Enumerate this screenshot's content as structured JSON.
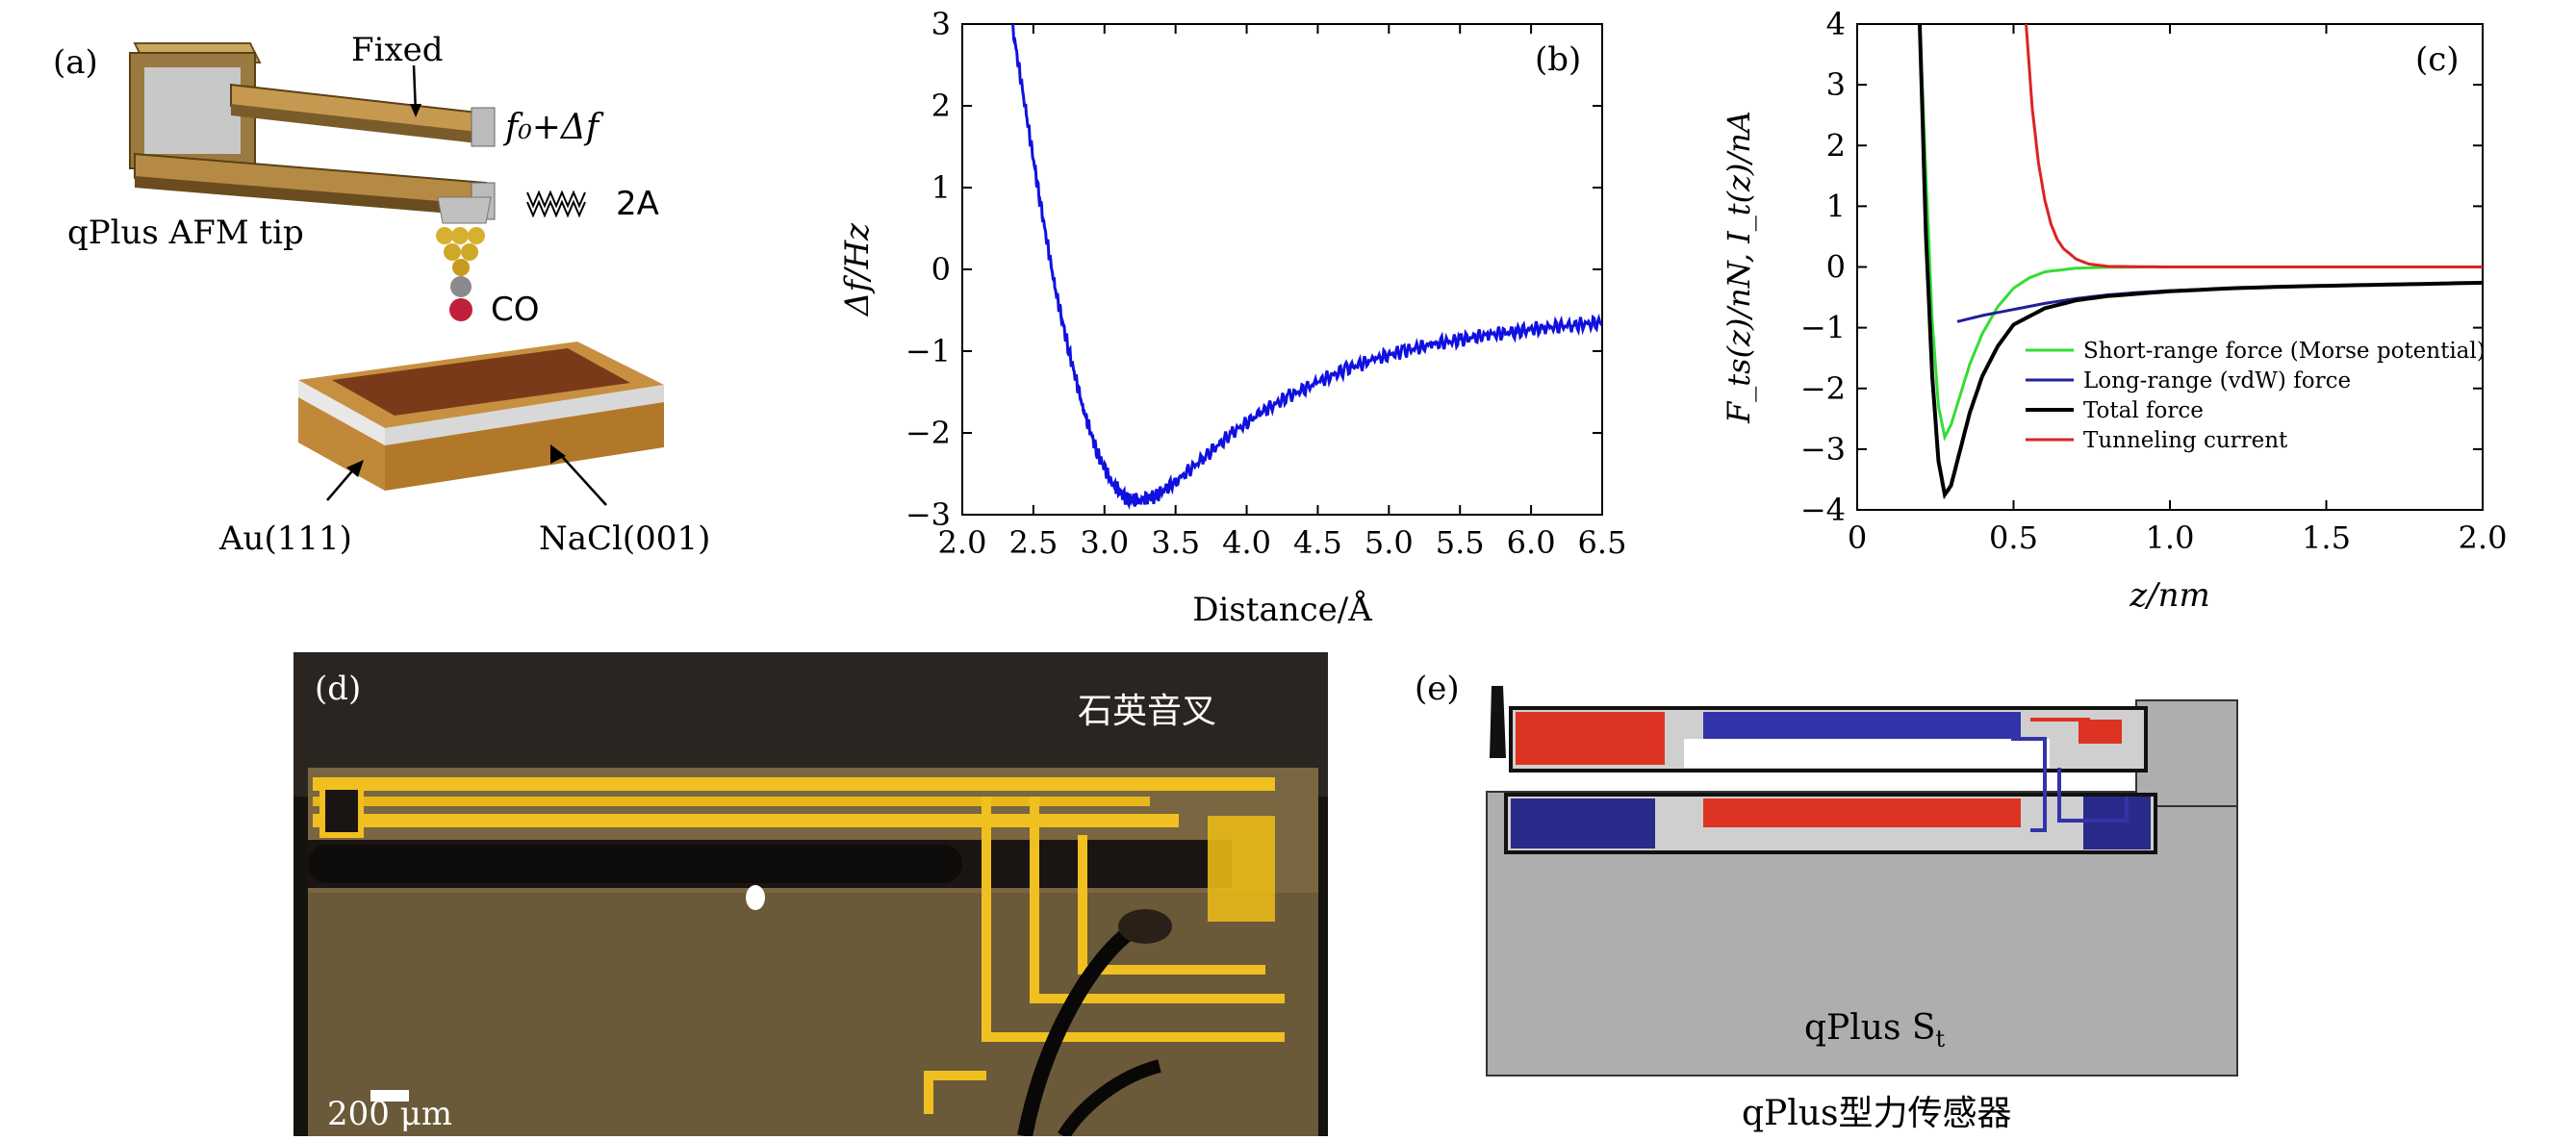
{
  "panel_a": {
    "label": "(a)",
    "fixed": "Fixed",
    "freq": "f₀+Δf",
    "amplitude": "2A",
    "tip": "qPlus AFM tip",
    "co": "CO",
    "au": "Au(111)",
    "nacl": "NaCl(001)"
  },
  "panel_d": {
    "label": "(d)",
    "tuning_fork": "石英音叉",
    "scale": "200 μm"
  },
  "panel_e": {
    "label": "(e)",
    "sensor": "qPlus S",
    "sensor_sub": "t",
    "caption": "qPlus型力传感器"
  },
  "chart_data": [
    {
      "type": "line",
      "panel_label": "(b)",
      "xlabel": "Distance/Å",
      "ylabel": "Δf/Hz",
      "xlim": [
        2.0,
        6.5
      ],
      "ylim": [
        -3,
        3
      ],
      "xticks": [
        "2.0",
        "2.5",
        "3.0",
        "3.5",
        "4.0",
        "4.5",
        "5.0",
        "5.5",
        "6.0",
        "6.5"
      ],
      "yticks": [
        "3",
        "2",
        "1",
        "0",
        "−1",
        "−2",
        "−3"
      ],
      "series": [
        {
          "color": "#1010e0",
          "x": [
            2.35,
            2.45,
            2.55,
            2.65,
            2.75,
            2.85,
            2.95,
            3.05,
            3.15,
            3.25,
            3.35,
            3.5,
            3.7,
            3.9,
            4.1,
            4.3,
            4.5,
            4.7,
            4.9,
            5.1,
            5.3,
            5.5,
            5.7,
            5.9,
            6.1,
            6.3,
            6.5
          ],
          "y": [
            3.0,
            1.9,
            0.8,
            -0.2,
            -1.0,
            -1.7,
            -2.25,
            -2.6,
            -2.8,
            -2.82,
            -2.78,
            -2.6,
            -2.3,
            -2.0,
            -1.75,
            -1.55,
            -1.38,
            -1.22,
            -1.1,
            -1.0,
            -0.92,
            -0.86,
            -0.8,
            -0.76,
            -0.71,
            -0.68,
            -0.65
          ]
        }
      ]
    },
    {
      "type": "line",
      "panel_label": "(c)",
      "xlabel": "z/nm",
      "ylabel": "F_ts(z)/nN, I_t(z)/nA",
      "xlim": [
        0,
        2.0
      ],
      "ylim": [
        -4,
        4
      ],
      "xticks": [
        "0",
        "0.5",
        "1.0",
        "1.5",
        "2.0"
      ],
      "yticks": [
        "4",
        "3",
        "2",
        "1",
        "0",
        "−1",
        "−2",
        "−3",
        "−4"
      ],
      "legend_position": "center-left",
      "series": [
        {
          "name": "Short-range force (Morse potential)",
          "color": "#33dd33",
          "x": [
            0.2,
            0.22,
            0.24,
            0.26,
            0.28,
            0.3,
            0.33,
            0.36,
            0.4,
            0.45,
            0.5,
            0.55,
            0.6,
            0.7,
            0.8,
            0.9,
            1.0
          ],
          "y": [
            4.0,
            1.5,
            -0.9,
            -2.3,
            -2.8,
            -2.6,
            -2.1,
            -1.6,
            -1.1,
            -0.65,
            -0.35,
            -0.18,
            -0.08,
            -0.02,
            -0.005,
            0,
            0
          ]
        },
        {
          "name": "Long-range (vdW) force",
          "color": "#20209a",
          "x": [
            0.32,
            0.4,
            0.5,
            0.6,
            0.7,
            0.8,
            0.9,
            1.0,
            1.2,
            1.4,
            1.6,
            1.8,
            2.0
          ],
          "y": [
            -0.9,
            -0.8,
            -0.7,
            -0.6,
            -0.52,
            -0.46,
            -0.42,
            -0.39,
            -0.35,
            -0.32,
            -0.3,
            -0.28,
            -0.26
          ]
        },
        {
          "name": "Total force",
          "color": "#000000",
          "x": [
            0.2,
            0.22,
            0.24,
            0.26,
            0.28,
            0.3,
            0.33,
            0.36,
            0.4,
            0.45,
            0.5,
            0.6,
            0.7,
            0.8,
            1.0,
            1.2,
            1.4,
            1.6,
            1.8,
            2.0
          ],
          "y": [
            4.0,
            0.5,
            -1.8,
            -3.2,
            -3.75,
            -3.6,
            -3.0,
            -2.4,
            -1.8,
            -1.3,
            -0.95,
            -0.68,
            -0.55,
            -0.48,
            -0.4,
            -0.35,
            -0.32,
            -0.3,
            -0.28,
            -0.26
          ]
        },
        {
          "name": "Tunneling current",
          "color": "#dd2222",
          "x": [
            0.54,
            0.56,
            0.58,
            0.6,
            0.62,
            0.64,
            0.66,
            0.7,
            0.74,
            0.8,
            1.0,
            1.5,
            2.0
          ],
          "y": [
            4.0,
            2.6,
            1.7,
            1.1,
            0.7,
            0.45,
            0.3,
            0.13,
            0.05,
            0.01,
            0,
            0,
            0
          ]
        }
      ]
    }
  ]
}
